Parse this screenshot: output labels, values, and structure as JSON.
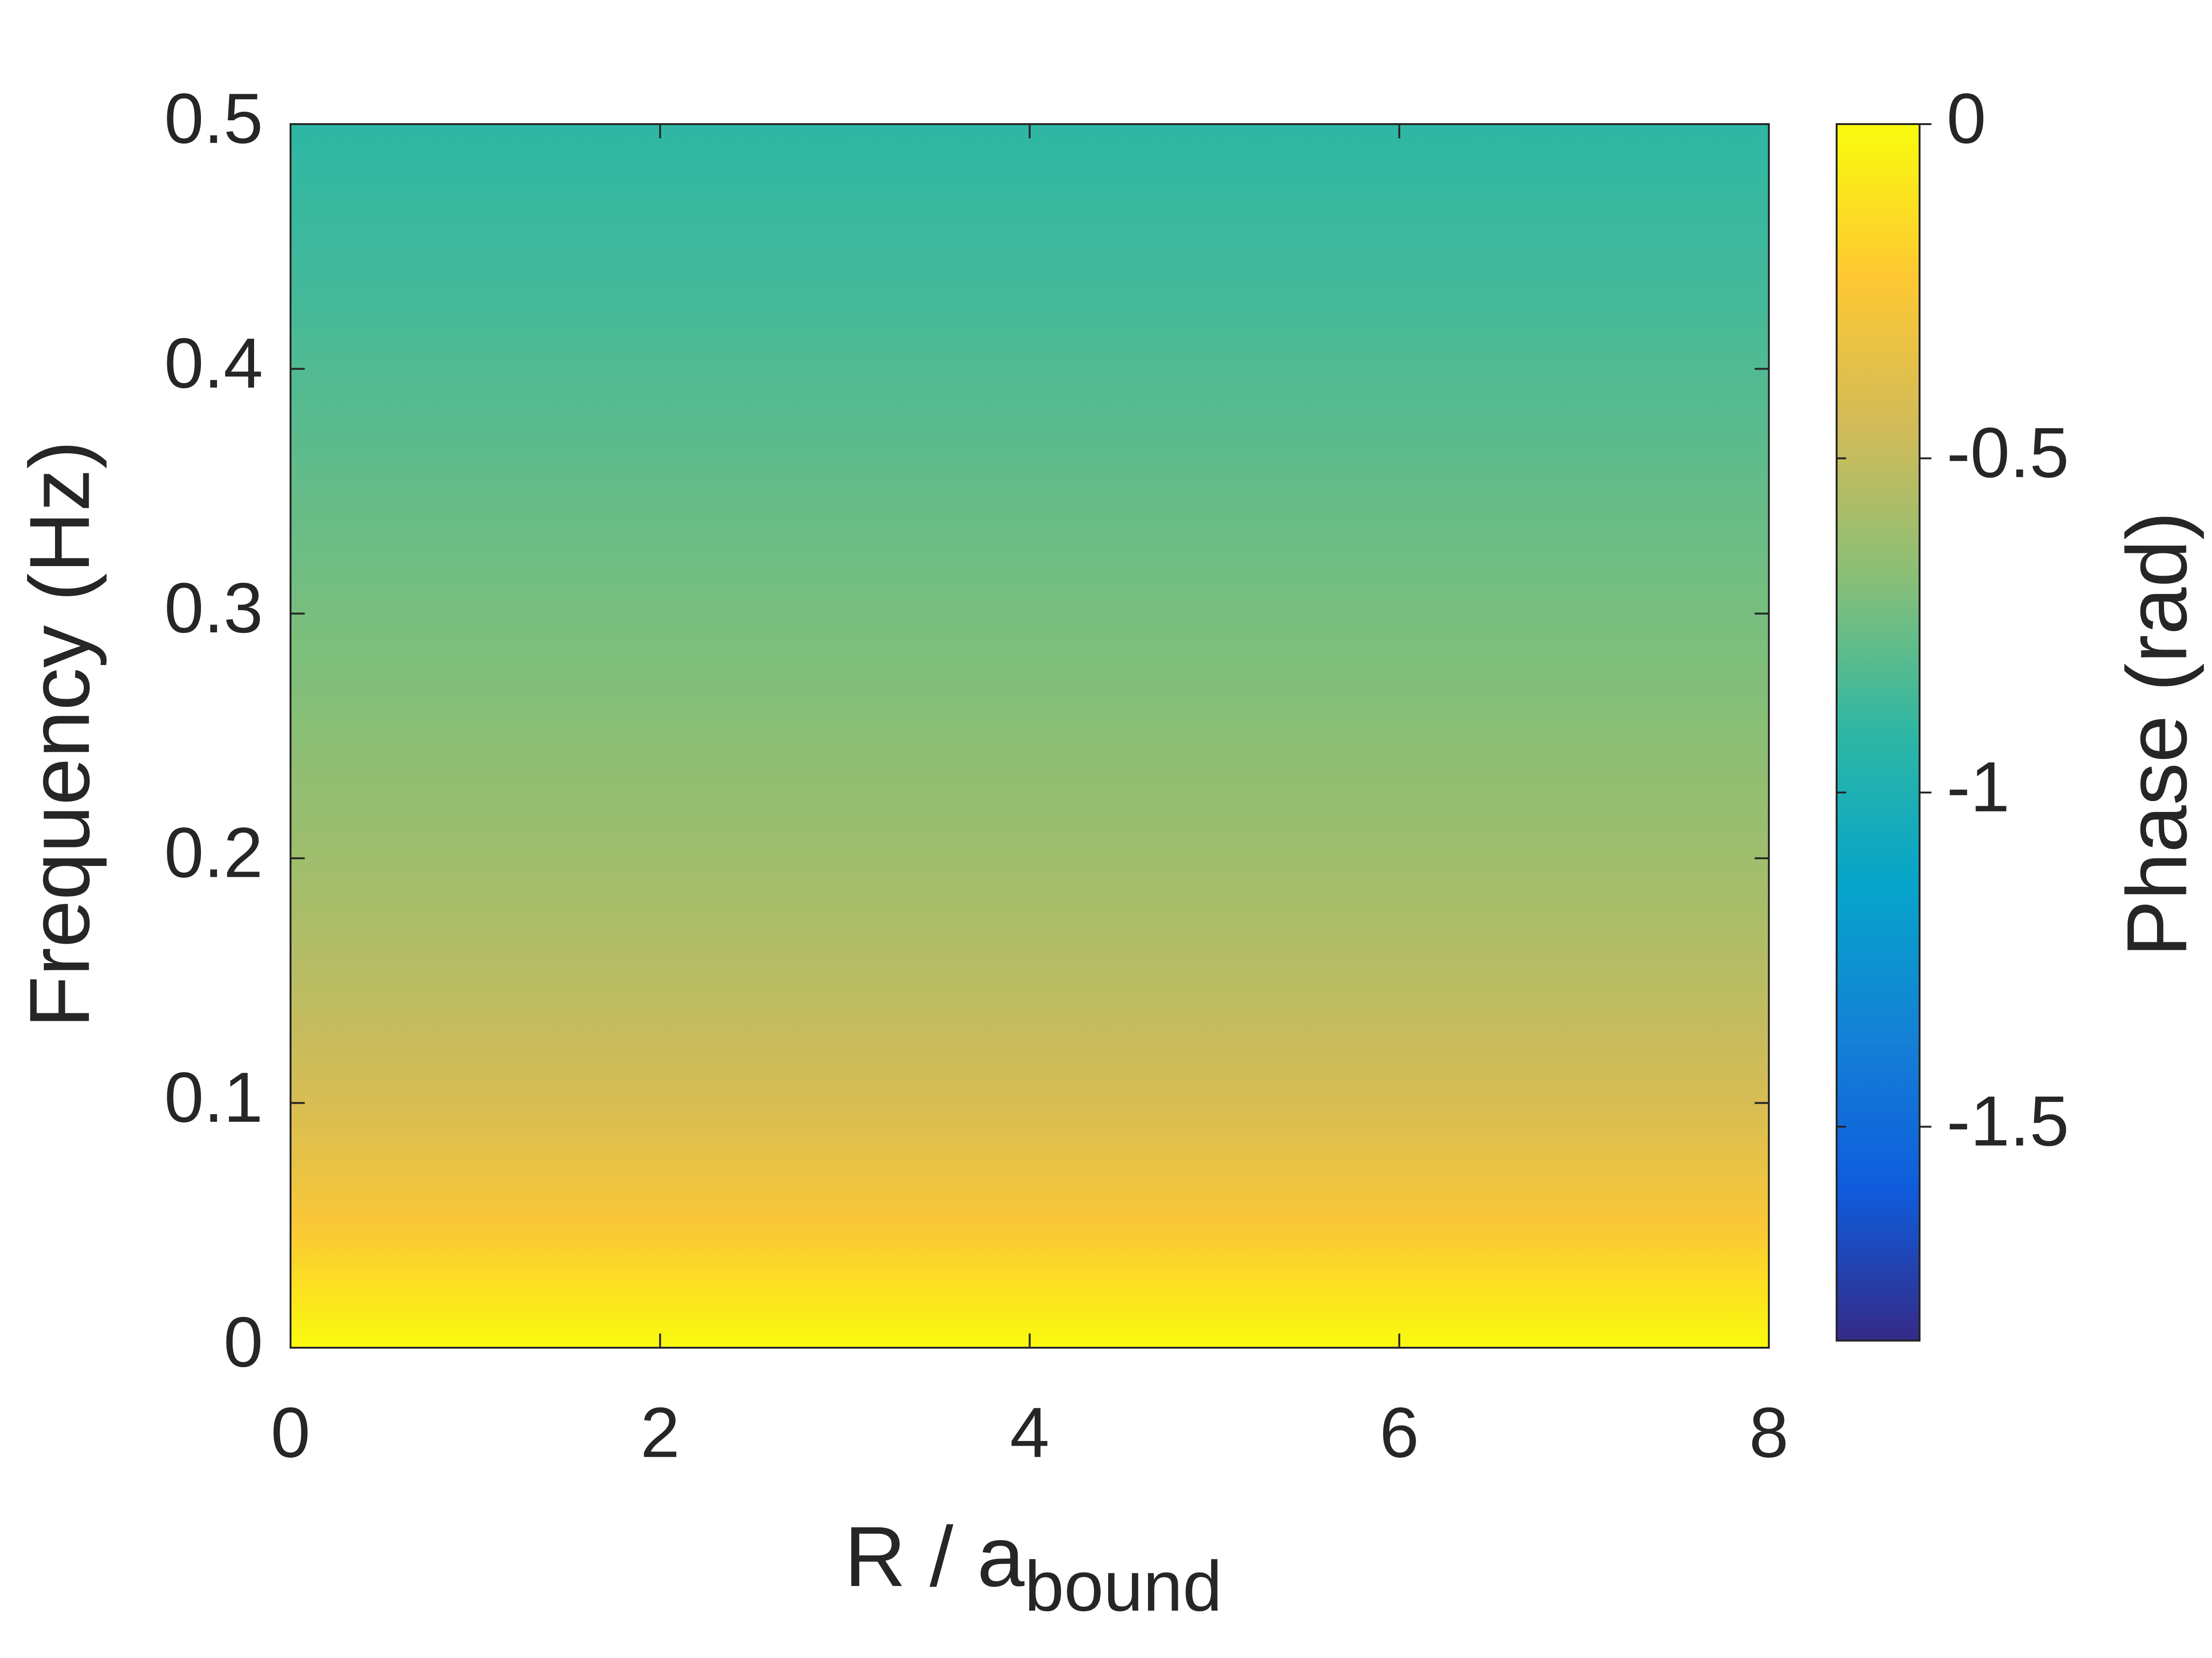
{
  "chart_data": {
    "type": "heatmap",
    "xlabel": "R / a",
    "xlabel_sub": "bound",
    "ylabel": "Frequency (Hz)",
    "colorbar_label": "Phase (rad)",
    "colormap": "parula",
    "xlim": [
      0,
      8
    ],
    "xticks": [
      0,
      2,
      4,
      6,
      8
    ],
    "ylim": [
      0,
      0.5
    ],
    "yticks": [
      0,
      0.1,
      0.2,
      0.3,
      0.4,
      0.5
    ],
    "clim": [
      -1.82,
      0
    ],
    "cticks": [
      0,
      -0.5,
      -1,
      -1.5
    ],
    "y": [
      0,
      0.025,
      0.05,
      0.075,
      0.1,
      0.125,
      0.15,
      0.175,
      0.2,
      0.225,
      0.25,
      0.275,
      0.3,
      0.325,
      0.35,
      0.375,
      0.4,
      0.425,
      0.45,
      0.475,
      0.5
    ],
    "values": [
      0,
      -0.12,
      -0.25,
      -0.34,
      -0.42,
      -0.48,
      -0.53,
      -0.57,
      -0.61,
      -0.64,
      -0.67,
      -0.7,
      -0.72,
      -0.75,
      -0.77,
      -0.8,
      -0.82,
      -0.85,
      -0.87,
      -0.89,
      -0.91
    ]
  }
}
